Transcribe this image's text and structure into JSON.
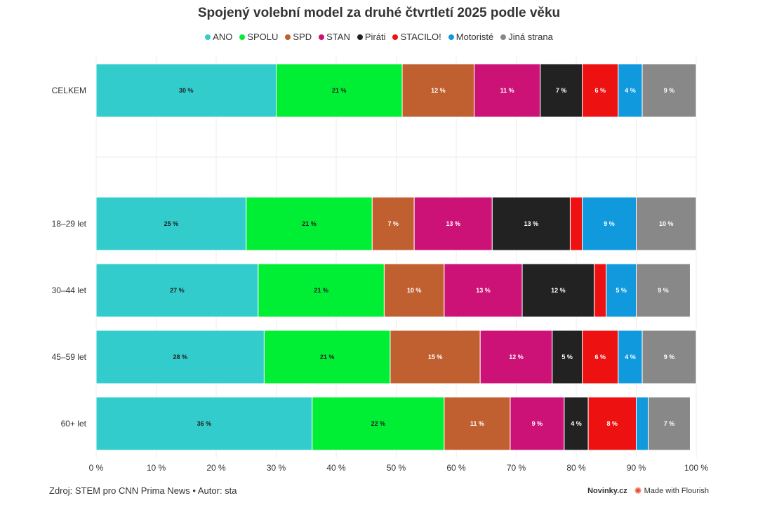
{
  "chart_data": {
    "type": "bar",
    "orientation": "horizontal",
    "stacked": true,
    "title": "Spojený volební model za druhé čtvrtletí 2025 podle věku",
    "categories": [
      "CELKEM",
      "18–29 let",
      "30–44 let",
      "45–59 let",
      "60+ let"
    ],
    "series": [
      {
        "name": "ANO",
        "color": "#33cccc",
        "values": [
          30,
          25,
          27,
          28,
          36
        ],
        "labels": [
          "30 %",
          "25 %",
          "27 %",
          "28 %",
          "36 %"
        ]
      },
      {
        "name": "SPOLU",
        "color": "#00ee33",
        "values": [
          21,
          21,
          21,
          21,
          22
        ],
        "labels": [
          "21 %",
          "21 %",
          "21 %",
          "21 %",
          "22 %"
        ]
      },
      {
        "name": "SPD",
        "color": "#c06030",
        "values": [
          12,
          7,
          10,
          15,
          11
        ],
        "labels": [
          "12 %",
          "7 %",
          "10 %",
          "15 %",
          "11 %"
        ]
      },
      {
        "name": "STAN",
        "color": "#cc1177",
        "values": [
          11,
          13,
          13,
          12,
          9
        ],
        "labels": [
          "11 %",
          "13 %",
          "13 %",
          "12 %",
          "9 %"
        ]
      },
      {
        "name": "Piráti",
        "color": "#222222",
        "values": [
          7,
          13,
          12,
          5,
          4
        ],
        "labels": [
          "7 %",
          "13 %",
          "12 %",
          "5 %",
          "4 %"
        ]
      },
      {
        "name": "STACILO!",
        "color": "#ee1111",
        "values": [
          6,
          2,
          2,
          6,
          8
        ],
        "labels": [
          "6 %",
          "",
          "",
          "6 %",
          "8 %"
        ]
      },
      {
        "name": "Motoristé",
        "color": "#1199dd",
        "values": [
          4,
          9,
          5,
          4,
          2
        ],
        "labels": [
          "4 %",
          "9 %",
          "5 %",
          "4 %",
          ""
        ]
      },
      {
        "name": "Jiná strana",
        "color": "#888888",
        "values": [
          9,
          10,
          9,
          9,
          7
        ],
        "labels": [
          "9 %",
          "10 %",
          "9 %",
          "9 %",
          "7 %"
        ]
      }
    ],
    "xlim": [
      0,
      100
    ],
    "xticks": [
      "0 %",
      "10 %",
      "20 %",
      "30 %",
      "40 %",
      "50 %",
      "60 %",
      "70 %",
      "80 %",
      "90 %",
      "100 %"
    ],
    "legend_position": "top-center",
    "grid": true
  },
  "footer": {
    "source": "Zdroj: STEM pro CNN Prima News • Autor: sta",
    "brand": "Novinky.cz",
    "made_with": "Made with Flourish"
  }
}
